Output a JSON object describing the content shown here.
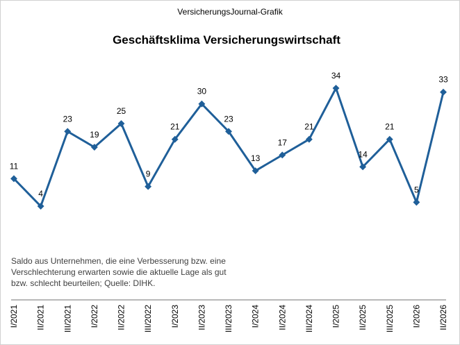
{
  "chart_data": {
    "type": "line",
    "source": "VersicherungsJournal-Grafik",
    "title": "Geschäftsklima  Versicherungswirtschaft",
    "note": [
      "Saldo aus Unternehmen, die eine Verbesserung bzw. eine",
      "Verschlechterung erwarten sowie die aktuelle Lage als gut",
      "bzw. schlecht beurteilen; Quelle: DIHK."
    ],
    "categories": [
      "I/2021",
      "II/2021",
      "III/2021",
      "I/2022",
      "II/2022",
      "III/2022",
      "I/2023",
      "II/2023",
      "III/2023",
      "I/2024",
      "II/2024",
      "III/2024",
      "I/2025",
      "II/2025",
      "III/2025",
      "I/2026",
      "II/2026"
    ],
    "series": [
      {
        "color": "#1f5f99",
        "values": [
          11,
          4,
          23,
          19,
          25,
          9,
          21,
          30,
          23,
          13,
          17,
          21,
          34,
          14,
          21,
          5,
          33
        ]
      }
    ]
  }
}
